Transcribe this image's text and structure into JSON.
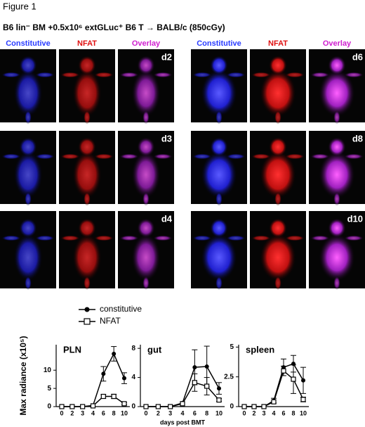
{
  "figure": {
    "title": "Figure 1",
    "subtitle": "B6 lin⁻ BM +0.5x10⁶ extGLuc⁺ B6 T → BALB/c (850cGy)"
  },
  "panels": {
    "left": {
      "columns": [
        "Constitutive",
        "NFAT",
        "Overlay"
      ],
      "days": [
        "d2",
        "d3",
        "d4"
      ]
    },
    "right": {
      "columns": [
        "Constitutive",
        "NFAT",
        "Overlay"
      ],
      "days": [
        "d6",
        "d8",
        "d10"
      ]
    }
  },
  "chart_data": [
    {
      "type": "line",
      "title": "PLN",
      "ylabel": "Max radiance (x10⁵)",
      "categories": [
        "0",
        "2",
        "3",
        "4",
        "6",
        "8",
        "10"
      ],
      "ylim": [
        0,
        17
      ],
      "yticks": [
        0,
        5,
        10
      ],
      "series": [
        {
          "name": "constitutive",
          "color": "#000000",
          "marker": "filled-circle",
          "values": [
            0,
            0,
            0,
            0.3,
            9,
            14.5,
            7.8
          ],
          "errors": [
            null,
            null,
            null,
            null,
            2,
            2,
            1.5
          ]
        },
        {
          "name": "NFAT",
          "color": "#000000",
          "marker": "open-square",
          "values": [
            0,
            0,
            0,
            0.2,
            2.8,
            2.8,
            0.8
          ],
          "errors": [
            null,
            null,
            null,
            null,
            0.5,
            0.6,
            0.3
          ]
        }
      ]
    },
    {
      "type": "line",
      "title": "gut",
      "xlabel": "days post BMT",
      "categories": [
        "0",
        "2",
        "3",
        "4",
        "6",
        "8",
        "10"
      ],
      "ylim": [
        0,
        8.5
      ],
      "yticks": [
        0,
        4,
        8
      ],
      "series": [
        {
          "color": "#000000",
          "marker": "filled-circle",
          "values": [
            0,
            0,
            0,
            0.5,
            5.4,
            5.5,
            2.5
          ],
          "errors": [
            null,
            null,
            null,
            null,
            2.4,
            2.8,
            0.8
          ]
        },
        {
          "color": "#000000",
          "marker": "open-square",
          "values": [
            0,
            0,
            0,
            0.4,
            3.3,
            2.8,
            0.9
          ],
          "errors": [
            null,
            null,
            null,
            null,
            1.2,
            1.2,
            0.2
          ]
        }
      ]
    },
    {
      "type": "line",
      "title": "spleen",
      "categories": [
        "0",
        "2",
        "3",
        "4",
        "6",
        "8",
        "10"
      ],
      "ylim": [
        0,
        5.2
      ],
      "yticks": [
        0,
        2.5,
        5
      ],
      "series": [
        {
          "color": "#000000",
          "marker": "filled-circle",
          "values": [
            0,
            0,
            0,
            0.5,
            3.3,
            3.6,
            2.2
          ],
          "errors": [
            null,
            null,
            null,
            0.2,
            0.7,
            0.7,
            1.1
          ]
        },
        {
          "color": "#000000",
          "marker": "open-square",
          "values": [
            0,
            0,
            0,
            0.4,
            3.0,
            2.3,
            0.6
          ],
          "errors": [
            null,
            null,
            null,
            null,
            0.4,
            1.2,
            0.2
          ]
        }
      ]
    }
  ]
}
